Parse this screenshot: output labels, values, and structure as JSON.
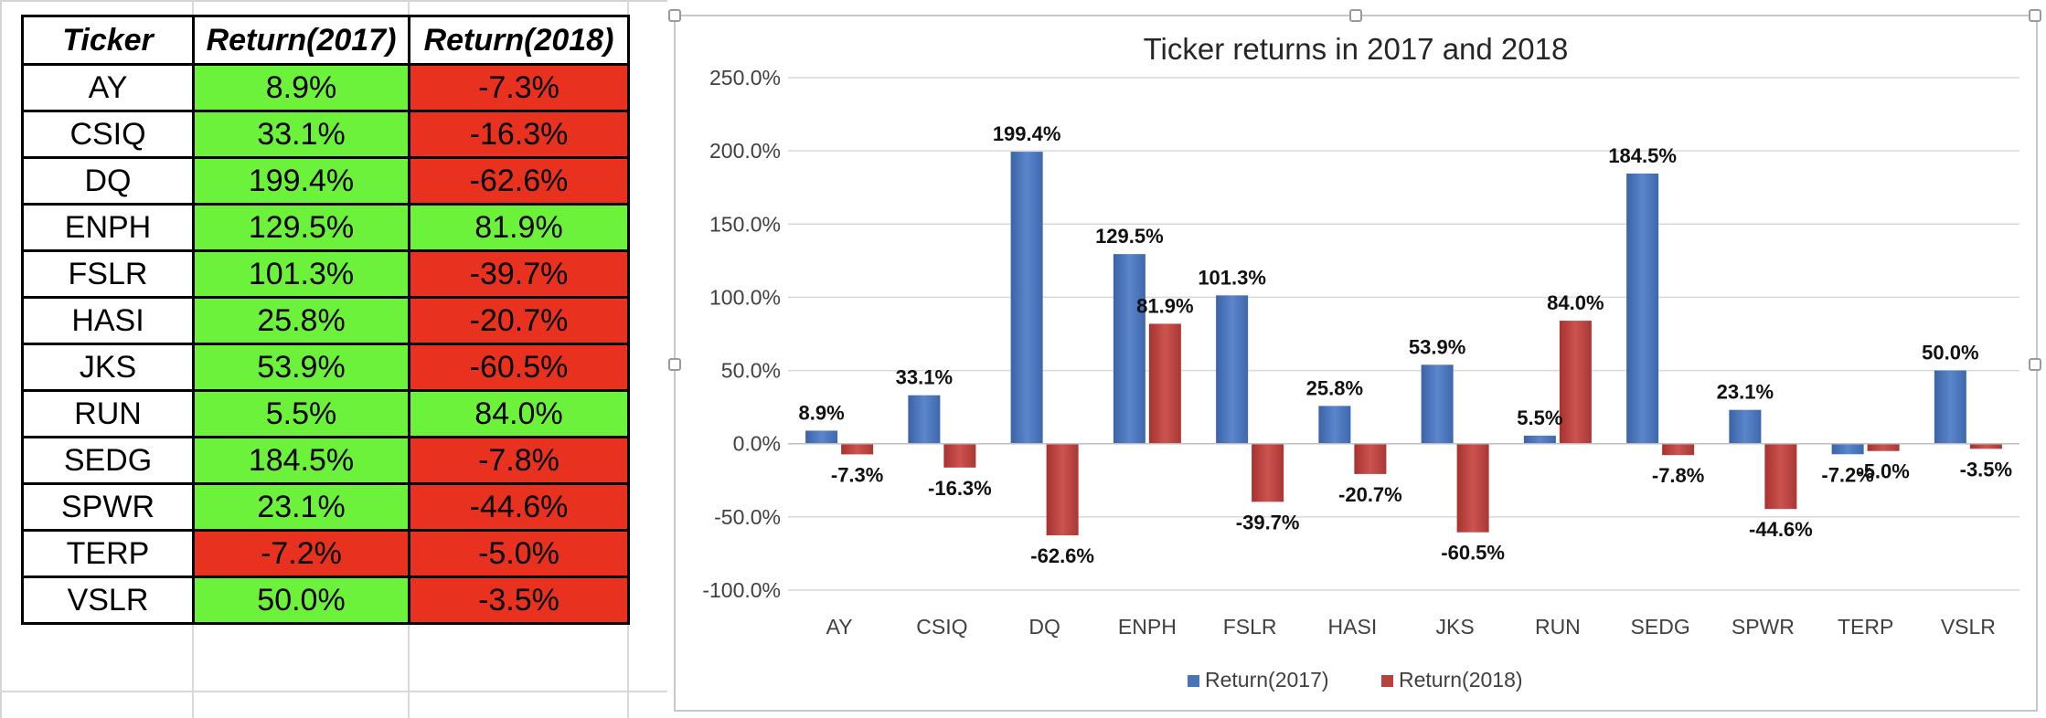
{
  "table": {
    "headers": [
      "Ticker",
      "Return(2017)",
      "Return(2018)"
    ],
    "rows": [
      {
        "ticker": "AY",
        "r2017": "8.9%",
        "r2018": "-7.3%"
      },
      {
        "ticker": "CSIQ",
        "r2017": "33.1%",
        "r2018": "-16.3%"
      },
      {
        "ticker": "DQ",
        "r2017": "199.4%",
        "r2018": "-62.6%"
      },
      {
        "ticker": "ENPH",
        "r2017": "129.5%",
        "r2018": "81.9%"
      },
      {
        "ticker": "FSLR",
        "r2017": "101.3%",
        "r2018": "-39.7%"
      },
      {
        "ticker": "HASI",
        "r2017": "25.8%",
        "r2018": "-20.7%"
      },
      {
        "ticker": "JKS",
        "r2017": "53.9%",
        "r2018": "-60.5%"
      },
      {
        "ticker": "RUN",
        "r2017": "5.5%",
        "r2018": "84.0%"
      },
      {
        "ticker": "SEDG",
        "r2017": "184.5%",
        "r2018": "-7.8%"
      },
      {
        "ticker": "SPWR",
        "r2017": "23.1%",
        "r2018": "-44.6%"
      },
      {
        "ticker": "TERP",
        "r2017": "-7.2%",
        "r2018": "-5.0%"
      },
      {
        "ticker": "VSLR",
        "r2017": "50.0%",
        "r2018": "-3.5%"
      }
    ],
    "positive_color": "#6df23c",
    "negative_color": "#e8321f"
  },
  "chart_data": {
    "type": "bar",
    "title": "Ticker returns in 2017 and 2018",
    "xlabel": "",
    "ylabel": "",
    "ylim": [
      -100,
      250
    ],
    "yticks": [
      -100,
      -50,
      0,
      50,
      100,
      150,
      200,
      250
    ],
    "ytick_labels": [
      "-100.0%",
      "-50.0%",
      "0.0%",
      "50.0%",
      "100.0%",
      "150.0%",
      "200.0%",
      "250.0%"
    ],
    "grid": true,
    "legend_position": "bottom",
    "categories": [
      "AY",
      "CSIQ",
      "DQ",
      "ENPH",
      "FSLR",
      "HASI",
      "JKS",
      "RUN",
      "SEDG",
      "SPWR",
      "TERP",
      "VSLR"
    ],
    "series": [
      {
        "name": "Return(2017)",
        "color": "#4a74b8",
        "values": [
          8.9,
          33.1,
          199.4,
          129.5,
          101.3,
          25.8,
          53.9,
          5.5,
          184.5,
          23.1,
          -7.2,
          50.0
        ],
        "labels": [
          "8.9%",
          "33.1%",
          "199.4%",
          "129.5%",
          "101.3%",
          "25.8%",
          "53.9%",
          "5.5%",
          "184.5%",
          "23.1%",
          "-7.2%",
          "50.0%"
        ]
      },
      {
        "name": "Return(2018)",
        "color": "#b8423f",
        "values": [
          -7.3,
          -16.3,
          -62.6,
          81.9,
          -39.7,
          -20.7,
          -60.5,
          84.0,
          -7.8,
          -44.6,
          -5.0,
          -3.5
        ],
        "labels": [
          "-7.3%",
          "-16.3%",
          "-62.6%",
          "81.9%",
          "-39.7%",
          "-20.7%",
          "-60.5%",
          "84.0%",
          "-7.8%",
          "-44.6%",
          "-5.0%",
          "-3.5%"
        ]
      }
    ]
  }
}
